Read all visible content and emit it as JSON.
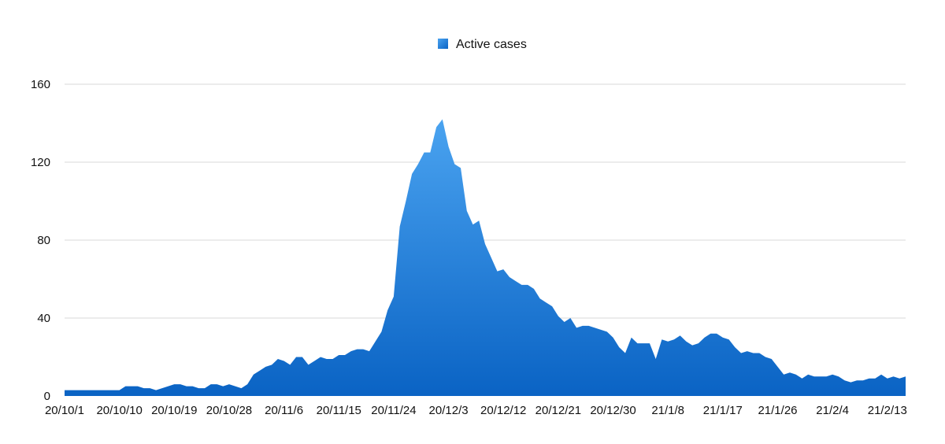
{
  "chart_data": {
    "type": "area",
    "title": "",
    "xlabel": "",
    "ylabel": "",
    "ylim": [
      0,
      160
    ],
    "yticks": [
      0,
      40,
      80,
      120,
      160
    ],
    "grid": true,
    "legend_position": "top-center",
    "x_start": "20/10/1",
    "x_end": "21/2/13",
    "x_tick_labels": [
      "20/10/1",
      "20/10/10",
      "20/10/19",
      "20/10/28",
      "20/11/6",
      "20/11/15",
      "20/11/24",
      "20/12/3",
      "20/12/12",
      "20/12/21",
      "20/12/30",
      "21/1/8",
      "21/1/17",
      "21/1/26",
      "21/2/4",
      "21/2/13"
    ],
    "colors": {
      "fill_top": "#4aa3f0",
      "fill_bottom": "#0a63c4",
      "grid": "#d9d9d9"
    },
    "series": [
      {
        "name": "Active cases",
        "values": [
          3,
          3,
          3,
          3,
          3,
          3,
          3,
          3,
          3,
          3,
          5,
          5,
          5,
          4,
          4,
          3,
          4,
          5,
          6,
          6,
          5,
          5,
          4,
          4,
          6,
          6,
          5,
          6,
          5,
          4,
          6,
          11,
          13,
          15,
          16,
          19,
          18,
          16,
          20,
          20,
          16,
          18,
          20,
          19,
          19,
          21,
          21,
          23,
          24,
          24,
          23,
          28,
          33,
          44,
          51,
          87,
          100,
          114,
          119,
          125,
          125,
          138,
          142,
          128,
          119,
          117,
          95,
          88,
          90,
          78,
          71,
          64,
          65,
          61,
          59,
          57,
          57,
          55,
          50,
          48,
          46,
          41,
          38,
          40,
          35,
          36,
          36,
          35,
          34,
          33,
          30,
          25,
          22,
          30,
          27,
          27,
          27,
          19,
          29,
          28,
          29,
          31,
          28,
          26,
          27,
          30,
          32,
          32,
          30,
          29,
          25,
          22,
          23,
          22,
          22,
          20,
          19,
          15,
          11,
          12,
          11,
          9,
          11,
          10,
          10,
          10,
          11,
          10,
          8,
          7,
          8,
          8,
          9,
          9,
          11,
          9,
          10,
          9,
          10
        ]
      }
    ]
  }
}
